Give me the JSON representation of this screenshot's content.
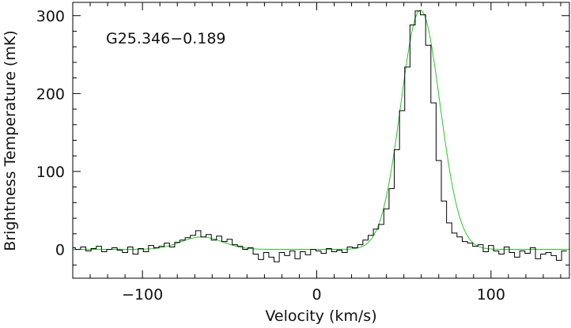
{
  "chart_data": {
    "type": "line",
    "title": "",
    "annotation": "G25.346−0.189",
    "xlabel": "Velocity (km/s)",
    "ylabel": "Brightness Temperature (mK)",
    "xlim": [
      -140,
      145
    ],
    "ylim": [
      -37,
      317
    ],
    "x_ticks": [
      -100,
      0,
      100
    ],
    "x_tick_labels": [
      "−100",
      "0",
      "100"
    ],
    "y_ticks": [
      0,
      100,
      200,
      300
    ],
    "y_tick_labels": [
      "0",
      "100",
      "200",
      "300"
    ],
    "x_minor_step": 10,
    "y_minor_step": 20,
    "grid": false,
    "legend": "none",
    "colors": {
      "observed": "#000000",
      "fit": "#22cc22",
      "axes": "#000000"
    },
    "series": [
      {
        "kind": "histogram-step",
        "color": "#000000",
        "x": [
          -140,
          -137,
          -134,
          -131,
          -128,
          -125,
          -122,
          -119,
          -116,
          -113,
          -110,
          -107,
          -104,
          -101,
          -98,
          -95,
          -92,
          -89,
          -86,
          -83,
          -80,
          -77,
          -74,
          -71,
          -68,
          -65,
          -62,
          -59,
          -56,
          -53,
          -50,
          -47,
          -44,
          -41,
          -38,
          -35,
          -32,
          -29,
          -26,
          -23,
          -20,
          -17,
          -14,
          -11,
          -8,
          -5,
          -2,
          1,
          4,
          7,
          10,
          13,
          16,
          19,
          22,
          25,
          28,
          31,
          34,
          37,
          40,
          43,
          46,
          49,
          52,
          55,
          58,
          61,
          64,
          67,
          70,
          73,
          76,
          79,
          82,
          85,
          88,
          91,
          94,
          97,
          100,
          103,
          106,
          109,
          112,
          115,
          118,
          121,
          124,
          127,
          130,
          133,
          136,
          139,
          142,
          145
        ],
        "y": [
          2,
          0,
          3,
          -2,
          1,
          4,
          -3,
          0,
          2,
          -1,
          -4,
          3,
          -6,
          1,
          -3,
          5,
          2,
          4,
          8,
          3,
          9,
          12,
          15,
          18,
          24,
          16,
          19,
          12,
          17,
          10,
          13,
          6,
          4,
          0,
          2,
          -6,
          -13,
          -4,
          -10,
          -16,
          -4,
          -8,
          -2,
          -12,
          -3,
          -7,
          0,
          -2,
          -5,
          1,
          -3,
          -1,
          -4,
          3,
          2,
          6,
          12,
          18,
          26,
          32,
          52,
          78,
          128,
          178,
          234,
          288,
          306,
          301,
          262,
          188,
          114,
          62,
          34,
          21,
          16,
          10,
          8,
          4,
          6,
          -3,
          5,
          -2,
          -6,
          3,
          -4,
          -10,
          -2,
          -5,
          2,
          -12,
          -6,
          -4,
          -8,
          -14,
          -2
        ]
      },
      {
        "kind": "model",
        "color": "#22cc22",
        "components": [
          {
            "amplitude": 307,
            "center": 59.5,
            "fwhm": 26.5
          },
          {
            "amplitude": 16,
            "center": -66,
            "fwhm": 28
          }
        ]
      }
    ]
  }
}
